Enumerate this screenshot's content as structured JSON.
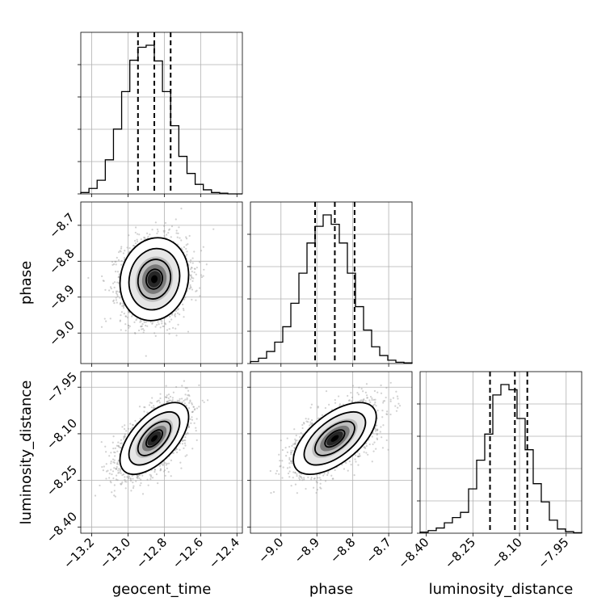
{
  "chart_data": {
    "type": "corner",
    "grid": true,
    "parameters": [
      "geocent_time",
      "phase",
      "luminosity_distance"
    ],
    "ranges": {
      "geocent_time": [
        -13.26,
        -12.37
      ],
      "phase": [
        -9.085,
        -8.635
      ],
      "luminosity_distance": [
        -8.42,
        -7.9
      ]
    },
    "ticks": {
      "geocent_time": [
        "−13.2",
        "−13.0",
        "−12.8",
        "−12.6",
        "−12.4"
      ],
      "phase": [
        "−9.0",
        "−8.9",
        "−8.8",
        "−8.7"
      ],
      "luminosity_distance": [
        "−8.40",
        "−8.25",
        "−8.10",
        "−7.95"
      ]
    },
    "quantiles": {
      "geocent_time": [
        -12.945,
        -12.855,
        -12.765
      ],
      "phase": [
        -8.905,
        -8.85,
        -8.795
      ],
      "luminosity_distance": [
        -8.195,
        -8.115,
        -8.075
      ]
    },
    "histograms": {
      "geocent_time": {
        "bin_edges": [
          -13.26,
          -13.215,
          -13.17,
          -13.125,
          -13.08,
          -13.035,
          -12.99,
          -12.945,
          -12.9,
          -12.855,
          -12.81,
          -12.765,
          -12.72,
          -12.675,
          -12.63,
          -12.585,
          -12.54,
          -12.495,
          -12.45,
          -12.405,
          -12.37
        ],
        "counts": [
          2,
          8,
          20,
          50,
          95,
          150,
          196,
          215,
          218,
          195,
          150,
          100,
          55,
          30,
          14,
          6,
          2,
          1,
          0,
          0
        ]
      },
      "phase": {
        "bin_edges": [
          -9.085,
          -9.0625,
          -9.04,
          -9.0175,
          -8.995,
          -8.9725,
          -8.95,
          -8.9275,
          -8.905,
          -8.8825,
          -8.86,
          -8.8375,
          -8.815,
          -8.7925,
          -8.77,
          -8.7475,
          -8.725,
          -8.7025,
          -8.68,
          -8.6575,
          -8.635
        ],
        "counts": [
          3,
          8,
          18,
          32,
          55,
          90,
          135,
          180,
          205,
          222,
          208,
          180,
          135,
          85,
          50,
          25,
          12,
          5,
          2,
          1
        ]
      },
      "luminosity_distance": {
        "bin_edges": [
          -8.42,
          -8.394,
          -8.368,
          -8.342,
          -8.316,
          -8.29,
          -8.264,
          -8.238,
          -8.212,
          -8.186,
          -8.16,
          -8.134,
          -8.108,
          -8.082,
          -8.056,
          -8.03,
          -8.004,
          -7.978,
          -7.952,
          -7.926,
          -7.9
        ],
        "counts": [
          2,
          5,
          10,
          20,
          30,
          40,
          85,
          140,
          190,
          265,
          285,
          275,
          220,
          160,
          95,
          60,
          25,
          8,
          3,
          1
        ]
      }
    },
    "pairs": [
      {
        "x": "geocent_time",
        "y": "phase",
        "mean": [
          -12.855,
          -8.85
        ],
        "std": [
          0.09,
          0.055
        ],
        "rho": 0.1
      },
      {
        "x": "geocent_time",
        "y": "luminosity_distance",
        "mean": [
          -12.855,
          -8.115
        ],
        "std": [
          0.09,
          0.055
        ],
        "rho": 0.6
      },
      {
        "x": "phase",
        "y": "luminosity_distance",
        "mean": [
          -8.85,
          -8.115
        ],
        "std": [
          0.055,
          0.055
        ],
        "rho": 0.6
      }
    ]
  }
}
